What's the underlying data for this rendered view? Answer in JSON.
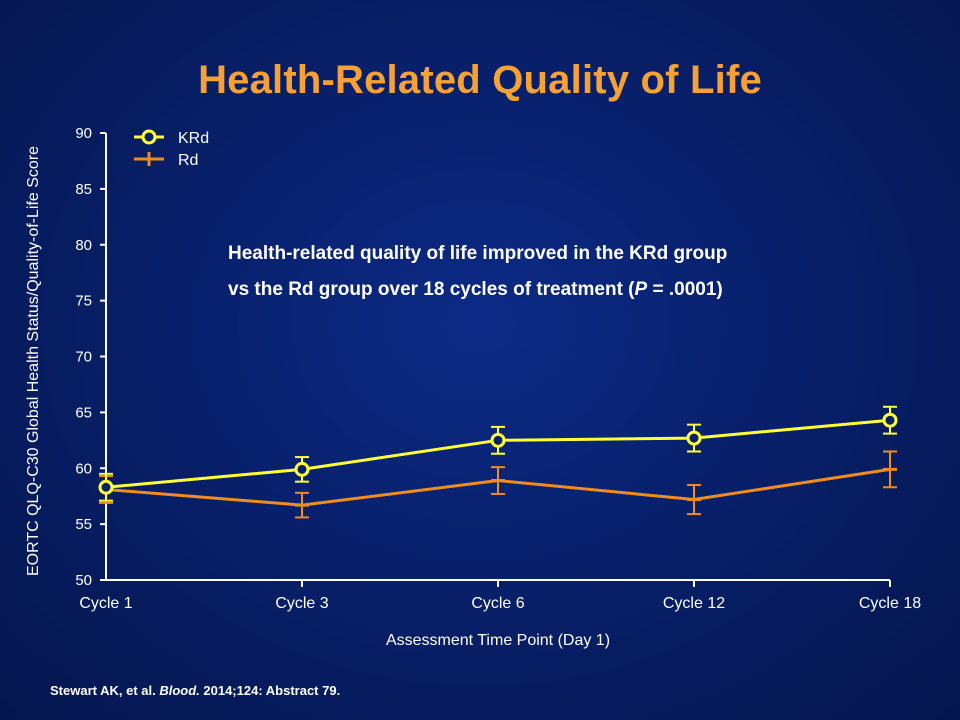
{
  "slide": {
    "title": "Health-Related Quality of Life",
    "annotation": {
      "line1": "Health-related quality of life improved in the KRd group",
      "line2_before": "vs the Rd group over 18 cycles of treatment (",
      "line2_italic": "P",
      "line2_after": " = .0001)"
    },
    "citation": {
      "authors": "Stewart AK, et al. ",
      "journal": "Blood.",
      "rest": " 2014;124: Abstract 79."
    }
  },
  "colors": {
    "background": "#08206b",
    "title": "#f6a133",
    "KRd": "#ffff33",
    "Rd": "#f08c1e",
    "axis": "#ffffff"
  },
  "chart_data": {
    "type": "line",
    "title": "",
    "xlabel": "Assessment Time Point (Day 1)",
    "ylabel": "EORTC QLQ-C30 Global Health Status/Quality-of-Life Score",
    "categories": [
      "Cycle 1",
      "Cycle 3",
      "Cycle 6",
      "Cycle 12",
      "Cycle 18"
    ],
    "ylim": [
      50,
      90
    ],
    "yticks": [
      50,
      55,
      60,
      65,
      70,
      75,
      80,
      85,
      90
    ],
    "grid": false,
    "legend_position": "top-left",
    "series": [
      {
        "name": "KRd",
        "marker": "circle",
        "color": "#ffff33",
        "values": [
          58.3,
          59.9,
          62.5,
          62.7,
          64.3
        ],
        "error_low": [
          57.1,
          58.8,
          61.3,
          61.5,
          63.1
        ],
        "error_high": [
          59.5,
          61.0,
          63.7,
          63.9,
          65.5
        ]
      },
      {
        "name": "Rd",
        "marker": "plus",
        "color": "#f08c1e",
        "values": [
          58.1,
          56.7,
          58.9,
          57.2,
          59.9
        ],
        "error_low": [
          56.9,
          55.6,
          57.7,
          55.9,
          58.3
        ],
        "error_high": [
          59.3,
          57.8,
          60.1,
          58.5,
          61.5
        ]
      }
    ]
  }
}
